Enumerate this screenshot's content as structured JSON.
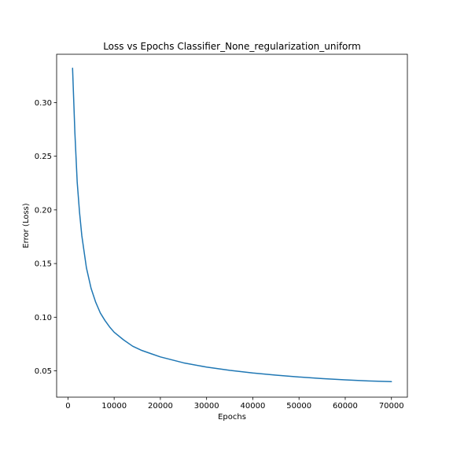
{
  "chart_data": {
    "type": "line",
    "title": "Loss vs Epochs Classifier_None_regularization_uniform",
    "xlabel": "Epochs",
    "ylabel": "Error (Loss)",
    "xlim": [
      -2450,
      73450
    ],
    "ylim": [
      0.0255,
      0.345
    ],
    "grid": false,
    "legend": "none",
    "x_ticks": [
      0,
      10000,
      20000,
      30000,
      40000,
      50000,
      60000,
      70000
    ],
    "x_tick_labels": [
      "0",
      "10000",
      "20000",
      "30000",
      "40000",
      "50000",
      "60000",
      "70000"
    ],
    "y_ticks": [
      0.05,
      0.1,
      0.15,
      0.2,
      0.25,
      0.3
    ],
    "y_tick_labels": [
      "0.05",
      "0.10",
      "0.15",
      "0.20",
      "0.25",
      "0.30"
    ],
    "series": [
      {
        "name": "loss",
        "color": "#1f77b4",
        "x": [
          1000,
          1500,
          2000,
          2500,
          3000,
          3500,
          4000,
          5000,
          6000,
          7000,
          8000,
          9000,
          10000,
          12000,
          14000,
          16000,
          18000,
          20000,
          25000,
          30000,
          35000,
          40000,
          45000,
          50000,
          55000,
          60000,
          65000,
          70000
        ],
        "y": [
          0.332,
          0.272,
          0.226,
          0.198,
          0.176,
          0.161,
          0.146,
          0.127,
          0.114,
          0.104,
          0.097,
          0.091,
          0.086,
          0.079,
          0.073,
          0.069,
          0.066,
          0.063,
          0.0575,
          0.0535,
          0.0505,
          0.048,
          0.046,
          0.0443,
          0.0428,
          0.0416,
          0.0406,
          0.04
        ]
      }
    ]
  }
}
